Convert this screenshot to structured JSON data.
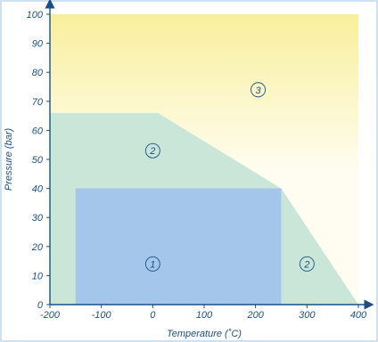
{
  "chart_data": {
    "type": "area",
    "title": "",
    "xlabel": "Temperature (˚C)",
    "ylabel": "Pressure (bar)",
    "xlim": [
      -200,
      400
    ],
    "ylim": [
      0,
      100
    ],
    "x_ticks": [
      -200,
      -100,
      0,
      100,
      200,
      300,
      400
    ],
    "y_ticks": [
      0,
      10,
      20,
      30,
      40,
      50,
      60,
      70,
      80,
      90,
      100
    ],
    "grid": false,
    "colors": {
      "zone1": "#a3c6ea",
      "zone2": "#c9e6d8",
      "zone3_top": "#f8ef9c",
      "zone3_bottom": "#fffdf2",
      "axis": "#1a4f86"
    },
    "regions": [
      {
        "label": "3",
        "polygon": [
          [
            -200,
            0
          ],
          [
            400,
            0
          ],
          [
            400,
            100
          ],
          [
            -200,
            100
          ]
        ],
        "label_at": [
          205,
          74
        ]
      },
      {
        "label": "2",
        "polygon": [
          [
            -200,
            0
          ],
          [
            400,
            0
          ],
          [
            250,
            40
          ],
          [
            10,
            66
          ],
          [
            -200,
            66
          ]
        ],
        "label_at": [
          0,
          53
        ]
      },
      {
        "label": "2",
        "polygon": [],
        "label_at": [
          300,
          14
        ]
      },
      {
        "label": "1",
        "polygon": [
          [
            -150,
            0
          ],
          [
            250,
            0
          ],
          [
            250,
            40
          ],
          [
            -150,
            40
          ]
        ],
        "label_at": [
          0,
          14
        ]
      }
    ]
  }
}
